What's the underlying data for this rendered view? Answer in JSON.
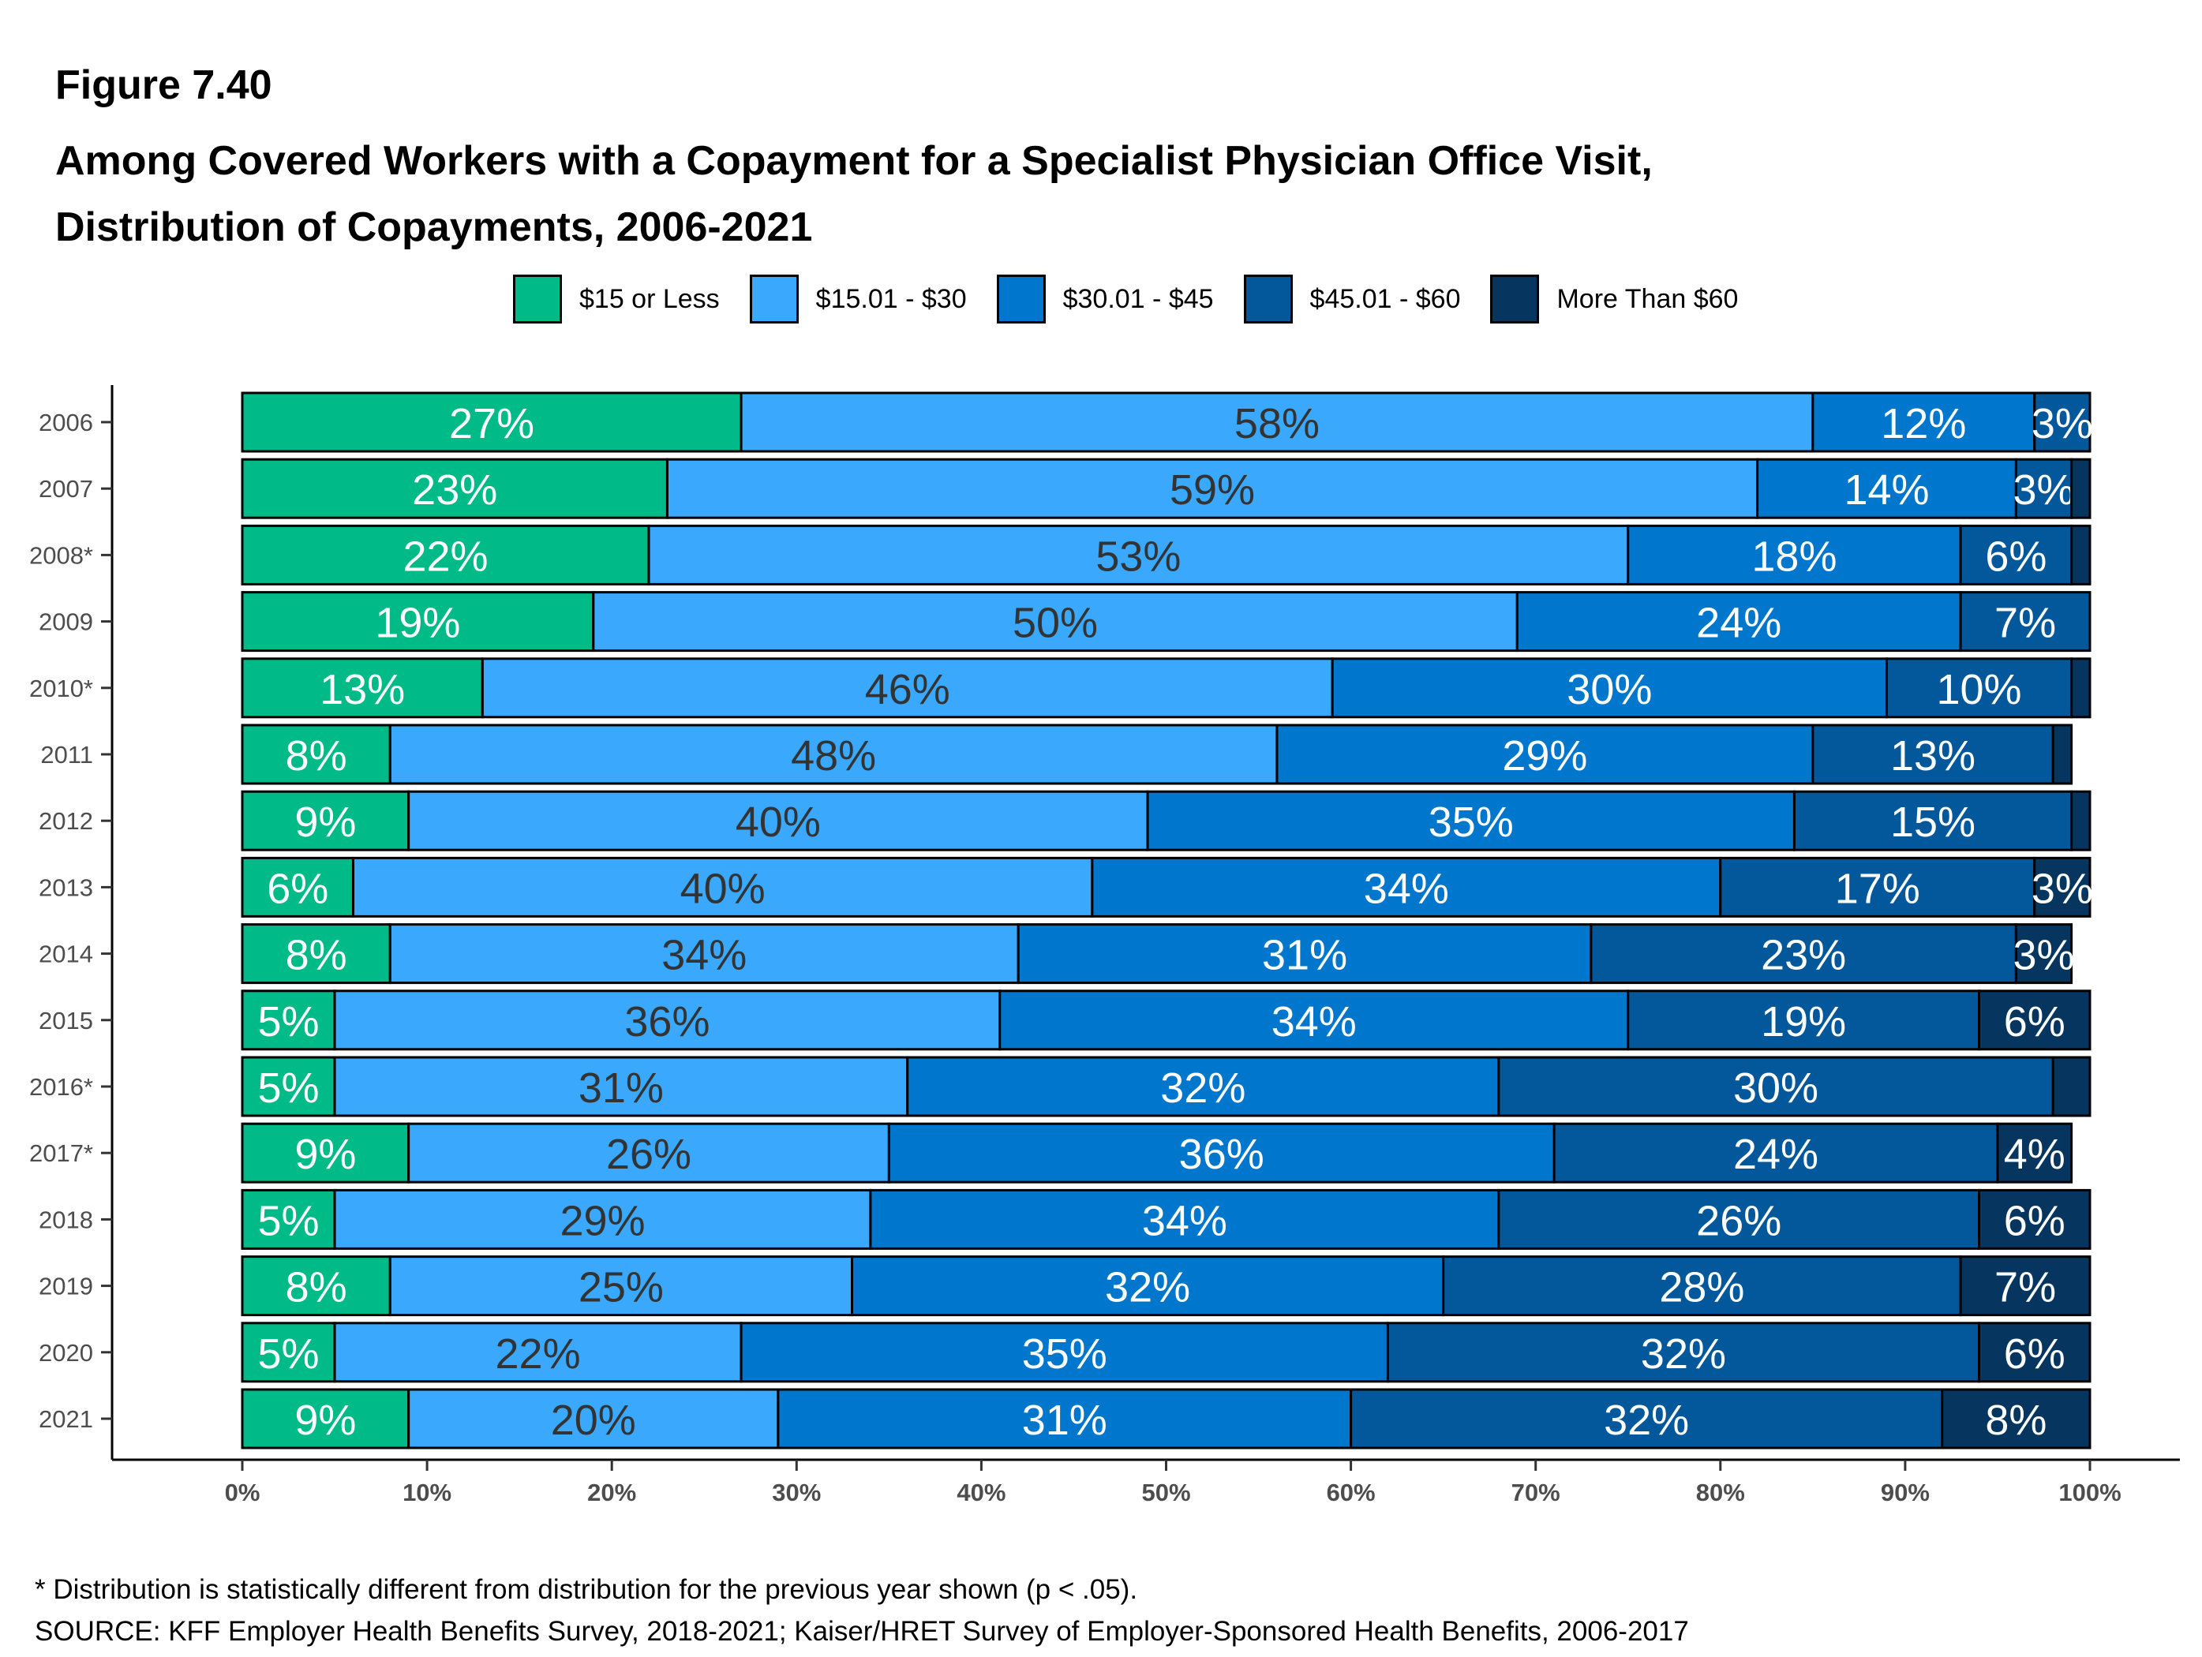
{
  "figure_label": "Figure 7.40",
  "title_line1": "Among Covered Workers with a Copayment for a Specialist Physician Office Visit,",
  "title_line2": "Distribution of Copayments, 2006-2021",
  "footnote": "* Distribution is statistically different from distribution for the previous year shown (p < .05).",
  "source": "SOURCE: KFF Employer Health Benefits Survey, 2018-2021; Kaiser/HRET Survey of Employer-Sponsored Health Benefits, 2006-2017",
  "chart_data": {
    "type": "bar",
    "orientation": "horizontal",
    "stacked": true,
    "legend_position": "top",
    "xlim": [
      0,
      100
    ],
    "x_ticks": [
      "0%",
      "10%",
      "20%",
      "30%",
      "40%",
      "50%",
      "60%",
      "70%",
      "80%",
      "90%",
      "100%"
    ],
    "categories": [
      "2006",
      "2007",
      "2008*",
      "2009",
      "2010*",
      "2011",
      "2012",
      "2013",
      "2014",
      "2015",
      "2016*",
      "2017*",
      "2018",
      "2019",
      "2020",
      "2021"
    ],
    "series": [
      {
        "name": "$15 or Less",
        "color": "#00BA87",
        "label_color": "#ffffff",
        "values": [
          27,
          23,
          22,
          19,
          13,
          8,
          9,
          6,
          8,
          5,
          5,
          9,
          5,
          8,
          5,
          9
        ]
      },
      {
        "name": "$15.01 - $30",
        "color": "#3AA8FD",
        "label_color": "#333333",
        "values": [
          58,
          59,
          53,
          50,
          46,
          48,
          40,
          40,
          34,
          36,
          31,
          26,
          29,
          25,
          22,
          20
        ]
      },
      {
        "name": "$30.01 - $45",
        "color": "#0077CC",
        "label_color": "#ffffff",
        "values": [
          12,
          14,
          18,
          24,
          30,
          29,
          35,
          34,
          31,
          34,
          32,
          36,
          34,
          32,
          35,
          31
        ]
      },
      {
        "name": "$45.01 - $60",
        "color": "#03579B",
        "label_color": "#ffffff",
        "values": [
          3,
          3,
          6,
          7,
          10,
          13,
          15,
          17,
          23,
          19,
          30,
          24,
          26,
          28,
          32,
          32
        ]
      },
      {
        "name": "More Than $60",
        "color": "#06365F",
        "label_color": "#ffffff",
        "values": [
          null,
          null,
          null,
          null,
          2,
          1,
          1,
          3,
          3,
          6,
          2,
          4,
          6,
          7,
          6,
          8
        ]
      }
    ],
    "data_labels": [
      [
        "27%",
        "58%",
        "12%",
        "3%",
        ""
      ],
      [
        "23%",
        "59%",
        "14%",
        "3%",
        ""
      ],
      [
        "22%",
        "53%",
        "18%",
        "6%",
        ""
      ],
      [
        "19%",
        "50%",
        "24%",
        "7%",
        ""
      ],
      [
        "13%",
        "46%",
        "30%",
        "10%",
        ""
      ],
      [
        "8%",
        "48%",
        "29%",
        "13%",
        ""
      ],
      [
        "9%",
        "40%",
        "35%",
        "15%",
        ""
      ],
      [
        "6%",
        "40%",
        "34%",
        "17%",
        "3%"
      ],
      [
        "8%",
        "34%",
        "31%",
        "23%",
        "3%"
      ],
      [
        "5%",
        "36%",
        "34%",
        "19%",
        "6%"
      ],
      [
        "5%",
        "31%",
        "32%",
        "30%",
        ""
      ],
      [
        "9%",
        "26%",
        "36%",
        "24%",
        "4%"
      ],
      [
        "5%",
        "29%",
        "34%",
        "26%",
        "6%"
      ],
      [
        "8%",
        "25%",
        "32%",
        "28%",
        "7%"
      ],
      [
        "5%",
        "22%",
        "35%",
        "32%",
        "6%"
      ],
      [
        "9%",
        "20%",
        "31%",
        "32%",
        "8%"
      ]
    ]
  }
}
